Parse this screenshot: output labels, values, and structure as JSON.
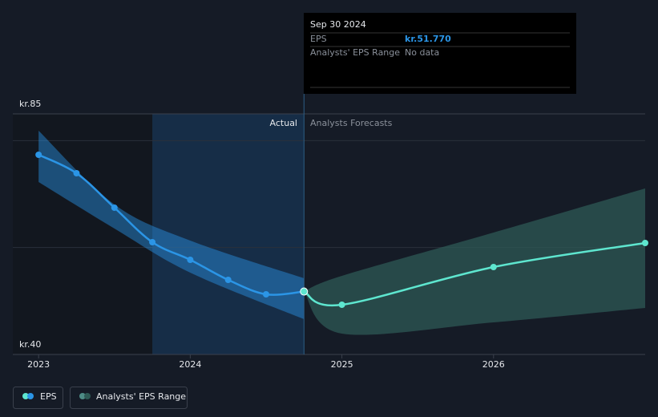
{
  "chart_data": {
    "type": "line",
    "xlim": [
      2022.83,
      2027
    ],
    "ylim": [
      40,
      85
    ],
    "xticks": [
      2023,
      2024,
      2025,
      2026
    ],
    "yticks": [
      {
        "value": 40,
        "label": "kr.40"
      },
      {
        "value": 85,
        "label": "kr.85"
      }
    ],
    "grid_lines": [
      60,
      80
    ],
    "highlight_range": [
      2023.75,
      2024.75
    ],
    "section_labels": [
      "Actual",
      "Analysts Forecasts"
    ],
    "series": [
      {
        "name": "EPS",
        "color": "#2b95e6",
        "forecast_color": "#5ee6cf",
        "x": [
          2023,
          2023.25,
          2023.5,
          2023.75,
          2024,
          2024.25,
          2024.5,
          2024.75
        ],
        "values": [
          77.35,
          73.9,
          67.45,
          61.0,
          57.7,
          53.95,
          51.25,
          51.77
        ],
        "band_x": [
          2023,
          2023.5,
          2024,
          2024.75
        ],
        "band_upper": [
          81.85,
          68.05,
          61.3,
          54.25
        ],
        "band_lower": [
          72.25,
          63.55,
          55.3,
          46.6
        ],
        "forecast_x": [
          2024.75,
          2025,
          2026,
          2027
        ],
        "forecast_values": [
          51.77,
          49.3,
          56.35,
          60.85
        ]
      },
      {
        "name": "Analysts' EPS Range",
        "color": "#2e5a55",
        "x": [
          2024.75,
          2025,
          2026,
          2027
        ],
        "upper": [
          51.77,
          54.7,
          62.8,
          71.05
        ],
        "lower": [
          51.77,
          43.9,
          46.0,
          48.7
        ]
      }
    ],
    "tooltip": {
      "date": "Sep 30 2024",
      "rows": [
        {
          "label": "EPS",
          "value": 51.77,
          "value_label": "kr.51.770"
        },
        {
          "label": "Analysts' EPS Range",
          "value_label": "No data"
        }
      ]
    }
  }
}
